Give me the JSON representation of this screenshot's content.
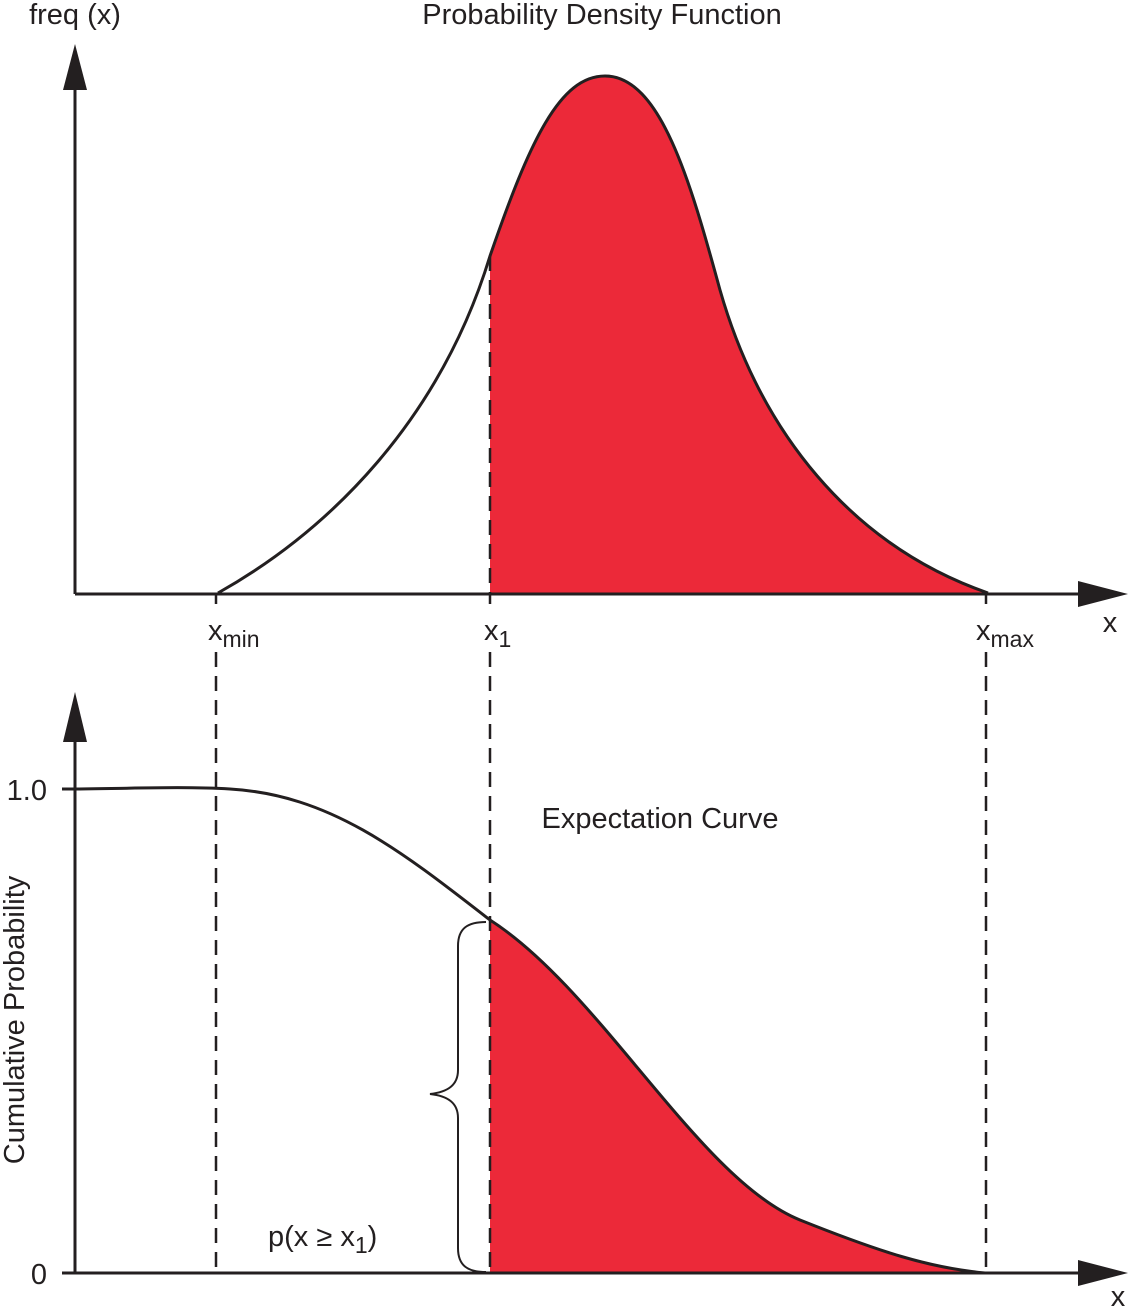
{
  "colors": {
    "fill": "#ec2939",
    "line": "#231f20",
    "background": "#ffffff"
  },
  "top_panel": {
    "title": "Probability Density Function",
    "y_axis_label": "freq (x)",
    "x_axis_label": "x"
  },
  "markers": {
    "x_min": {
      "base": "x",
      "sub": "min"
    },
    "x_1": {
      "base": "x",
      "sub": "1"
    },
    "x_max": {
      "base": "x",
      "sub": "max"
    }
  },
  "bottom_panel": {
    "curve_label": "Expectation Curve",
    "y_axis_label": "Cumulative Probability",
    "x_axis_label": "x",
    "tick_top": "1.0",
    "tick_bottom": "0",
    "probability_label": {
      "prefix": "p(x ≥ x",
      "sub": "1",
      "suffix": ")"
    }
  }
}
